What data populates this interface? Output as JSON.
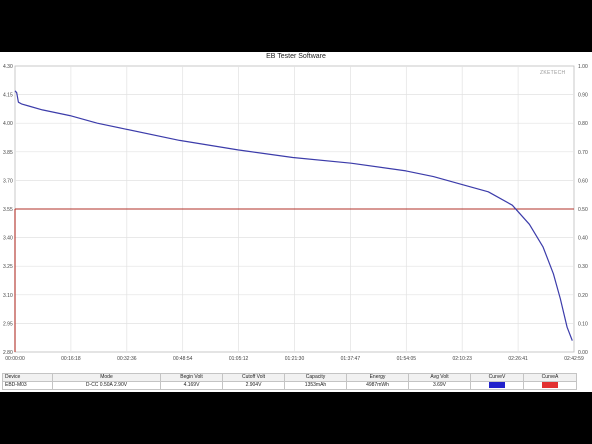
{
  "window": {
    "title": "EB Tester Software",
    "brand": "ZKETECH"
  },
  "colors": {
    "voltage_curve": "#3c3caa",
    "current_curve": "#b03028",
    "grid": "#e2e2e2",
    "curve_v_swatch": "#2222cc",
    "curve_a_swatch": "#e23030"
  },
  "chart_data": {
    "type": "line",
    "title": "EB Tester Software",
    "x_ticks": [
      "00:00:00",
      "00:16:18",
      "00:32:36",
      "00:48:54",
      "01:05:12",
      "01:21:30",
      "01:37:47",
      "01:54:05",
      "02:10:23",
      "02:26:41",
      "02:42:59"
    ],
    "y_left_ticks": [
      "2.80",
      "2.95",
      "3.10",
      "3.25",
      "3.40",
      "3.55",
      "3.70",
      "3.85",
      "4.00",
      "4.15",
      "4.30"
    ],
    "y_right_ticks": [
      "0.00",
      "0.10",
      "0.20",
      "0.30",
      "0.40",
      "0.50",
      "0.60",
      "0.70",
      "0.80",
      "0.90",
      "1.00"
    ],
    "xlim_minutes": [
      0,
      163
    ],
    "ylim_left": [
      2.8,
      4.3
    ],
    "ylim_right": [
      0.0,
      1.0
    ],
    "grid": true,
    "series": [
      {
        "axis": "left",
        "x_minutes": [
          0,
          0.5,
          1,
          2,
          4,
          8,
          16,
          24,
          32,
          48,
          65,
          81,
          98,
          114,
          122,
          130,
          138,
          145,
          150,
          154,
          157,
          159,
          161,
          162.5
        ],
        "values": [
          4.17,
          4.16,
          4.11,
          4.1,
          4.09,
          4.07,
          4.04,
          4.0,
          3.97,
          3.91,
          3.86,
          3.82,
          3.79,
          3.75,
          3.72,
          3.68,
          3.64,
          3.57,
          3.47,
          3.35,
          3.21,
          3.08,
          2.93,
          2.86
        ]
      },
      {
        "axis": "right",
        "x_minutes": [
          0,
          163
        ],
        "values": [
          0.5,
          0.5
        ]
      }
    ]
  },
  "info_table": {
    "headers": [
      "Device",
      "Mode",
      "Begin Volt",
      "Cutoff Volt",
      "Capacity",
      "Energy",
      "Avg Volt",
      "CurveV",
      "CurveA"
    ],
    "row": [
      "EBD-M03",
      "D-CC 0.50A 2.90V",
      "4.169V",
      "2.904V",
      "1353mAh",
      "4987mWh",
      "3.69V"
    ]
  }
}
